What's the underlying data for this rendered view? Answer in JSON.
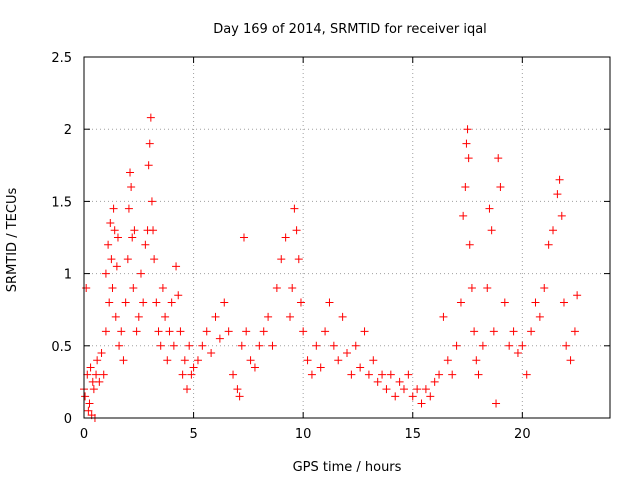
{
  "chart_data": {
    "type": "scatter",
    "title": "Day 169 of 2014, SRMTID for receiver iqal",
    "xlabel": "GPS time / hours",
    "ylabel": "SRMTID / TECUs",
    "xlim": [
      0,
      24
    ],
    "ylim": [
      0,
      2.5
    ],
    "grid": true,
    "marker": "+",
    "x_ticks": [
      0,
      5,
      10,
      15,
      20
    ],
    "x_tick_labels": [
      "0",
      "5",
      "10",
      "15",
      "20"
    ],
    "y_ticks": [
      0,
      0.5,
      1,
      1.5,
      2,
      2.5
    ],
    "y_tick_labels": [
      "0",
      "0.5",
      "1",
      "1.5",
      "2",
      "2.5"
    ],
    "series": [
      {
        "name": "SRMTID",
        "color": "#ff0000",
        "points": [
          [
            0.0,
            0.2
          ],
          [
            0.05,
            0.15
          ],
          [
            0.1,
            0.9
          ],
          [
            0.15,
            0.3
          ],
          [
            0.2,
            0.05
          ],
          [
            0.25,
            0.1
          ],
          [
            0.3,
            0.35
          ],
          [
            0.35,
            0.02
          ],
          [
            0.4,
            0.25
          ],
          [
            0.45,
            0.2
          ],
          [
            0.5,
            0.0
          ],
          [
            0.55,
            0.3
          ],
          [
            0.6,
            0.4
          ],
          [
            0.7,
            0.25
          ],
          [
            0.8,
            0.45
          ],
          [
            0.9,
            0.3
          ],
          [
            1.0,
            0.6
          ],
          [
            1.0,
            1.0
          ],
          [
            1.1,
            1.2
          ],
          [
            1.15,
            0.8
          ],
          [
            1.2,
            1.35
          ],
          [
            1.25,
            1.1
          ],
          [
            1.3,
            0.9
          ],
          [
            1.35,
            1.45
          ],
          [
            1.4,
            1.3
          ],
          [
            1.45,
            0.7
          ],
          [
            1.5,
            1.05
          ],
          [
            1.55,
            1.25
          ],
          [
            1.6,
            0.5
          ],
          [
            1.7,
            0.6
          ],
          [
            1.8,
            0.4
          ],
          [
            1.9,
            0.8
          ],
          [
            2.0,
            1.1
          ],
          [
            2.05,
            1.45
          ],
          [
            2.1,
            1.7
          ],
          [
            2.15,
            1.6
          ],
          [
            2.2,
            1.25
          ],
          [
            2.25,
            0.9
          ],
          [
            2.3,
            1.3
          ],
          [
            2.4,
            0.6
          ],
          [
            2.5,
            0.7
          ],
          [
            2.6,
            1.0
          ],
          [
            2.7,
            0.8
          ],
          [
            2.8,
            1.2
          ],
          [
            2.9,
            1.3
          ],
          [
            2.95,
            1.75
          ],
          [
            3.0,
            1.9
          ],
          [
            3.05,
            2.08
          ],
          [
            3.1,
            1.5
          ],
          [
            3.15,
            1.3
          ],
          [
            3.2,
            1.1
          ],
          [
            3.3,
            0.8
          ],
          [
            3.4,
            0.6
          ],
          [
            3.5,
            0.5
          ],
          [
            3.6,
            0.9
          ],
          [
            3.7,
            0.7
          ],
          [
            3.8,
            0.4
          ],
          [
            3.9,
            0.6
          ],
          [
            4.0,
            0.8
          ],
          [
            4.1,
            0.5
          ],
          [
            4.2,
            1.05
          ],
          [
            4.3,
            0.85
          ],
          [
            4.4,
            0.6
          ],
          [
            4.5,
            0.3
          ],
          [
            4.6,
            0.4
          ],
          [
            4.7,
            0.2
          ],
          [
            4.8,
            0.5
          ],
          [
            4.9,
            0.3
          ],
          [
            5.0,
            0.35
          ],
          [
            5.2,
            0.4
          ],
          [
            5.4,
            0.5
          ],
          [
            5.6,
            0.6
          ],
          [
            5.8,
            0.45
          ],
          [
            6.0,
            0.7
          ],
          [
            6.2,
            0.55
          ],
          [
            6.4,
            0.8
          ],
          [
            6.6,
            0.6
          ],
          [
            6.8,
            0.3
          ],
          [
            7.0,
            0.2
          ],
          [
            7.1,
            0.15
          ],
          [
            7.2,
            0.5
          ],
          [
            7.3,
            1.25
          ],
          [
            7.4,
            0.6
          ],
          [
            7.6,
            0.4
          ],
          [
            7.8,
            0.35
          ],
          [
            8.0,
            0.5
          ],
          [
            8.2,
            0.6
          ],
          [
            8.4,
            0.7
          ],
          [
            8.6,
            0.5
          ],
          [
            8.8,
            0.9
          ],
          [
            9.0,
            1.1
          ],
          [
            9.2,
            1.25
          ],
          [
            9.4,
            0.7
          ],
          [
            9.5,
            0.9
          ],
          [
            9.6,
            1.45
          ],
          [
            9.7,
            1.3
          ],
          [
            9.8,
            1.1
          ],
          [
            9.9,
            0.8
          ],
          [
            10.0,
            0.6
          ],
          [
            10.2,
            0.4
          ],
          [
            10.4,
            0.3
          ],
          [
            10.6,
            0.5
          ],
          [
            10.8,
            0.35
          ],
          [
            11.0,
            0.6
          ],
          [
            11.2,
            0.8
          ],
          [
            11.4,
            0.5
          ],
          [
            11.6,
            0.4
          ],
          [
            11.8,
            0.7
          ],
          [
            12.0,
            0.45
          ],
          [
            12.2,
            0.3
          ],
          [
            12.4,
            0.5
          ],
          [
            12.6,
            0.35
          ],
          [
            12.8,
            0.6
          ],
          [
            13.0,
            0.3
          ],
          [
            13.2,
            0.4
          ],
          [
            13.4,
            0.25
          ],
          [
            13.6,
            0.3
          ],
          [
            13.8,
            0.2
          ],
          [
            14.0,
            0.3
          ],
          [
            14.2,
            0.15
          ],
          [
            14.4,
            0.25
          ],
          [
            14.6,
            0.2
          ],
          [
            14.8,
            0.3
          ],
          [
            15.0,
            0.15
          ],
          [
            15.2,
            0.2
          ],
          [
            15.4,
            0.1
          ],
          [
            15.6,
            0.2
          ],
          [
            15.8,
            0.15
          ],
          [
            16.0,
            0.25
          ],
          [
            16.2,
            0.3
          ],
          [
            16.4,
            0.7
          ],
          [
            16.6,
            0.4
          ],
          [
            16.8,
            0.3
          ],
          [
            17.0,
            0.5
          ],
          [
            17.2,
            0.8
          ],
          [
            17.3,
            1.4
          ],
          [
            17.4,
            1.6
          ],
          [
            17.45,
            1.9
          ],
          [
            17.5,
            2.0
          ],
          [
            17.55,
            1.8
          ],
          [
            17.6,
            1.2
          ],
          [
            17.7,
            0.9
          ],
          [
            17.8,
            0.6
          ],
          [
            17.9,
            0.4
          ],
          [
            18.0,
            0.3
          ],
          [
            18.2,
            0.5
          ],
          [
            18.4,
            0.9
          ],
          [
            18.5,
            1.45
          ],
          [
            18.6,
            1.3
          ],
          [
            18.7,
            0.6
          ],
          [
            18.8,
            0.1
          ],
          [
            18.9,
            1.8
          ],
          [
            19.0,
            1.6
          ],
          [
            19.2,
            0.8
          ],
          [
            19.4,
            0.5
          ],
          [
            19.6,
            0.6
          ],
          [
            19.8,
            0.45
          ],
          [
            20.0,
            0.5
          ],
          [
            20.2,
            0.3
          ],
          [
            20.4,
            0.6
          ],
          [
            20.6,
            0.8
          ],
          [
            20.8,
            0.7
          ],
          [
            21.0,
            0.9
          ],
          [
            21.2,
            1.2
          ],
          [
            21.4,
            1.3
          ],
          [
            21.6,
            1.55
          ],
          [
            21.7,
            1.65
          ],
          [
            21.8,
            1.4
          ],
          [
            21.9,
            0.8
          ],
          [
            22.0,
            0.5
          ],
          [
            22.2,
            0.4
          ],
          [
            22.4,
            0.6
          ],
          [
            22.5,
            0.85
          ]
        ]
      }
    ]
  }
}
